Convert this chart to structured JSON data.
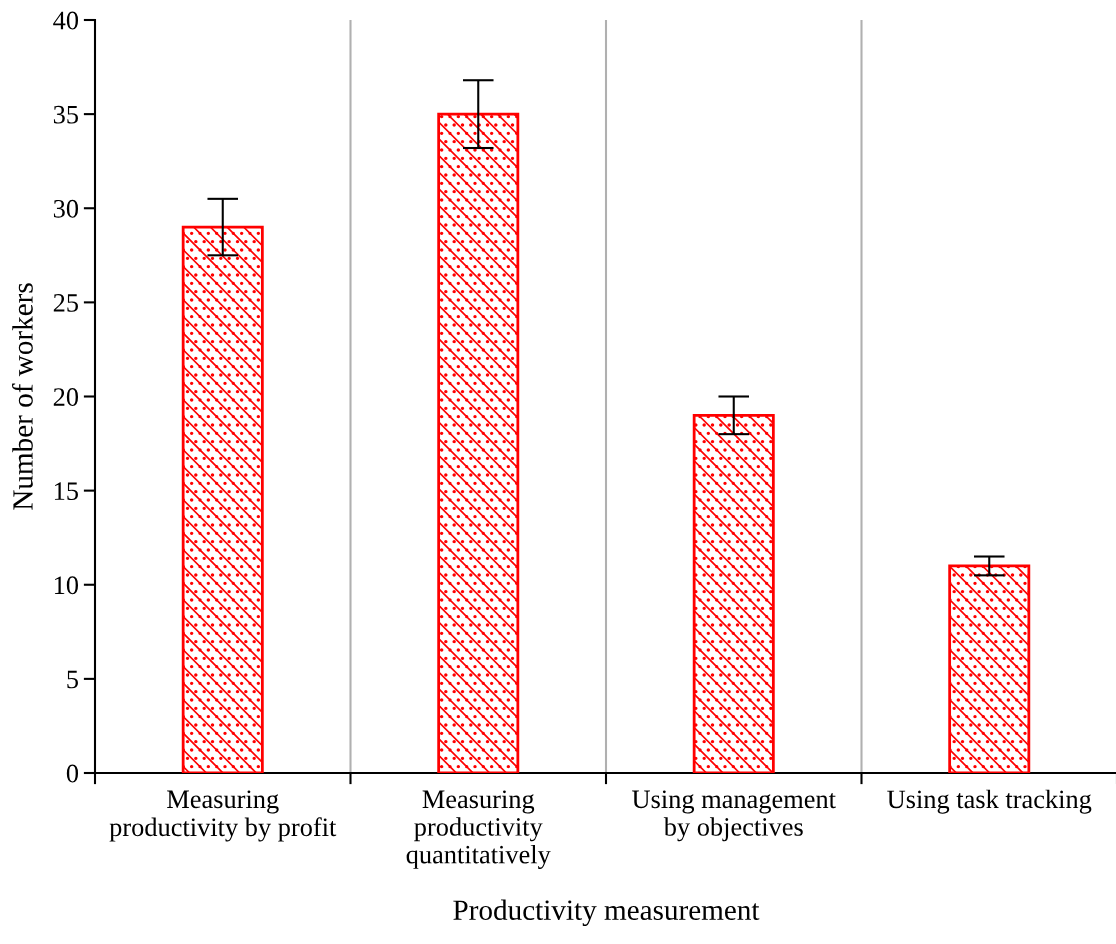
{
  "chart_data": {
    "type": "bar",
    "xlabel": "Productivity measurement",
    "ylabel": "Number of workers",
    "categories": [
      "Measuring\nproductivity by profit",
      "Measuring\nproductivity\nquantitatively",
      "Using management\nby objectives",
      "Using task tracking"
    ],
    "values": [
      29,
      35,
      19,
      11
    ],
    "errors": [
      1.5,
      1.8,
      1.0,
      0.5
    ],
    "color": "#ff0000",
    "ylim": [
      0,
      40
    ],
    "yticks": [
      0,
      5,
      10,
      15,
      20,
      25,
      30,
      35,
      40
    ],
    "grid": "x",
    "legend": false
  }
}
